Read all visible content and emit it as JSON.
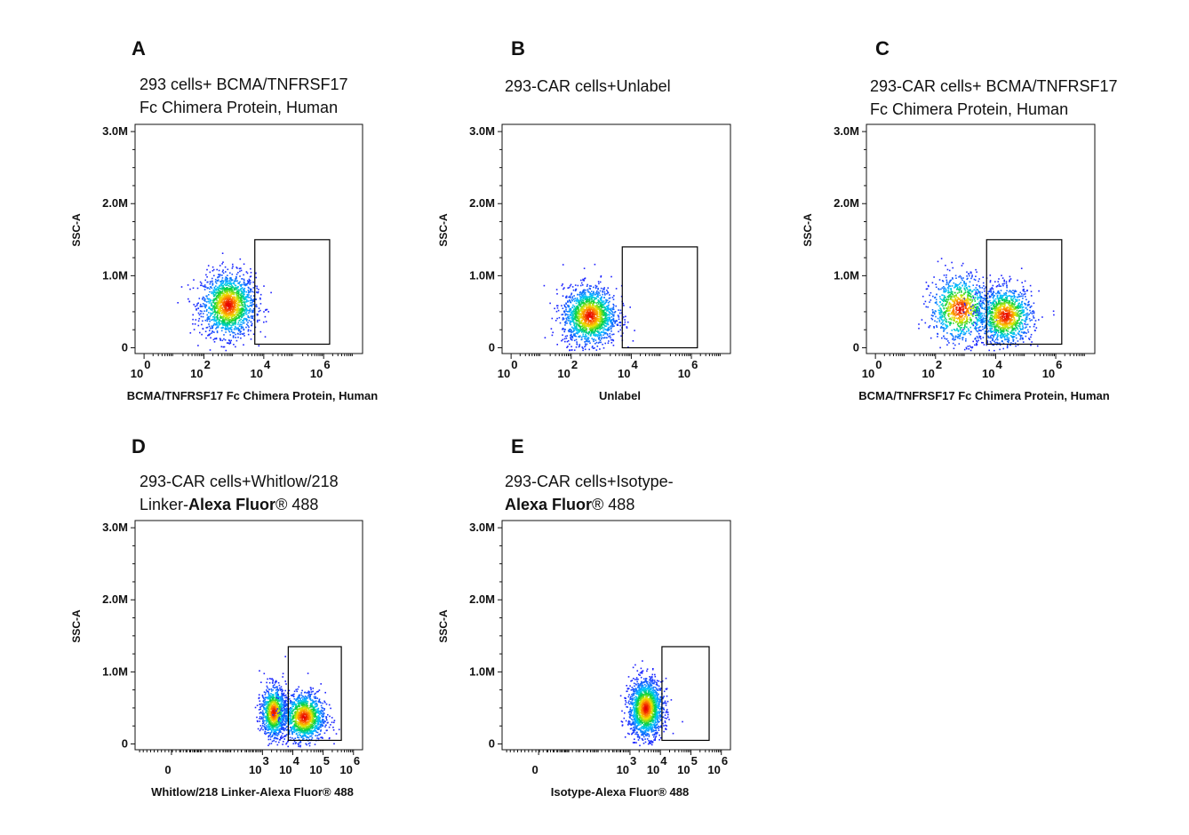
{
  "chart_data": [
    {
      "type": "scatter",
      "panel": "A",
      "title_lines": [
        [
          {
            "text": "293 cells+ BCMA/TNFRSF17",
            "bold": false
          }
        ],
        [
          {
            "text": "Fc Chimera Protein, Human",
            "bold": false
          }
        ]
      ],
      "xlabel": "BCMA/TNFRSF17 Fc Chimera Protein, Human",
      "ylabel": "SSC-A",
      "y_ticks": [
        {
          "v": 0,
          "label": "0"
        },
        {
          "v": 1000000,
          "label": "1.0M"
        },
        {
          "v": 2000000,
          "label": "2.0M"
        },
        {
          "v": 3000000,
          "label": "3.0M"
        }
      ],
      "x_ticks": [
        {
          "v": 0,
          "base": "10",
          "exp": "0"
        },
        {
          "v": 2,
          "base": "10",
          "exp": "2"
        },
        {
          "v": 4,
          "base": "10",
          "exp": "4"
        },
        {
          "v": 6,
          "base": "10",
          "exp": "6"
        }
      ],
      "xlim": [
        -0.3,
        7.3
      ],
      "ylim": [
        -80000,
        3100000
      ],
      "gate": {
        "x": [
          3.7,
          6.2
        ],
        "y": [
          50000,
          1500000
        ]
      },
      "populations": [
        {
          "cx": 2.8,
          "cy": 600000,
          "sx": 0.45,
          "sy": 220000,
          "n": 1600
        }
      ]
    },
    {
      "type": "scatter",
      "panel": "B",
      "title_lines": [
        [
          {
            "text": "293-CAR cells+Unlabel",
            "bold": false
          }
        ]
      ],
      "xlabel": "Unlabel",
      "ylabel": "SSC-A",
      "y_ticks": [
        {
          "v": 0,
          "label": "0"
        },
        {
          "v": 1000000,
          "label": "1.0M"
        },
        {
          "v": 2000000,
          "label": "2.0M"
        },
        {
          "v": 3000000,
          "label": "3.0M"
        }
      ],
      "x_ticks": [
        {
          "v": 0,
          "base": "10",
          "exp": "0"
        },
        {
          "v": 2,
          "base": "10",
          "exp": "2"
        },
        {
          "v": 4,
          "base": "10",
          "exp": "4"
        },
        {
          "v": 6,
          "base": "10",
          "exp": "6"
        }
      ],
      "xlim": [
        -0.3,
        7.3
      ],
      "ylim": [
        -80000,
        3100000
      ],
      "gate": {
        "x": [
          3.7,
          6.2
        ],
        "y": [
          0,
          1400000
        ]
      },
      "populations": [
        {
          "cx": 2.6,
          "cy": 450000,
          "sx": 0.45,
          "sy": 200000,
          "n": 1600
        }
      ]
    },
    {
      "type": "scatter",
      "panel": "C",
      "title_lines": [
        [
          {
            "text": "293-CAR cells+ BCMA/TNFRSF17",
            "bold": false
          }
        ],
        [
          {
            "text": "Fc Chimera Protein, Human",
            "bold": false
          }
        ]
      ],
      "xlabel": "BCMA/TNFRSF17 Fc Chimera Protein, Human",
      "ylabel": "SSC-A",
      "y_ticks": [
        {
          "v": 0,
          "label": "0"
        },
        {
          "v": 1000000,
          "label": "1.0M"
        },
        {
          "v": 2000000,
          "label": "2.0M"
        },
        {
          "v": 3000000,
          "label": "3.0M"
        }
      ],
      "x_ticks": [
        {
          "v": 0,
          "base": "10",
          "exp": "0"
        },
        {
          "v": 2,
          "base": "10",
          "exp": "2"
        },
        {
          "v": 4,
          "base": "10",
          "exp": "4"
        },
        {
          "v": 6,
          "base": "10",
          "exp": "6"
        }
      ],
      "xlim": [
        -0.3,
        7.3
      ],
      "ylim": [
        -80000,
        3100000
      ],
      "gate": {
        "x": [
          3.7,
          6.2
        ],
        "y": [
          50000,
          1500000
        ]
      },
      "populations": [
        {
          "cx": 2.8,
          "cy": 550000,
          "sx": 0.5,
          "sy": 230000,
          "n": 1000
        },
        {
          "cx": 4.3,
          "cy": 450000,
          "sx": 0.45,
          "sy": 200000,
          "n": 1200
        }
      ]
    },
    {
      "type": "scatter",
      "panel": "D",
      "title_lines": [
        [
          {
            "text": "293-CAR  cells+Whitlow/218",
            "bold": false
          }
        ],
        [
          {
            "text": "Linker-",
            "bold": false
          },
          {
            "text": "Alexa Fluor",
            "bold": true
          },
          {
            "text": "® 488",
            "bold": false
          }
        ]
      ],
      "xlabel": "Whitlow/218 Linker-Alexa Fluor® 488",
      "ylabel": "SSC-A",
      "y_ticks": [
        {
          "v": 0,
          "label": "0"
        },
        {
          "v": 1000000,
          "label": "1.0M"
        },
        {
          "v": 2000000,
          "label": "2.0M"
        },
        {
          "v": 3000000,
          "label": "3.0M"
        }
      ],
      "x_ticks": [
        {
          "v": 0,
          "base": "0",
          "exp": ""
        },
        {
          "v": 3,
          "base": "10",
          "exp": "3"
        },
        {
          "v": 4,
          "base": "10",
          "exp": "4"
        },
        {
          "v": 5,
          "base": "10",
          "exp": "5"
        },
        {
          "v": 6,
          "base": "10",
          "exp": "6"
        }
      ],
      "xlim": [
        -1.2,
        6.3
      ],
      "ylim": [
        -80000,
        3100000
      ],
      "gate": {
        "x": [
          3.85,
          5.6
        ],
        "y": [
          50000,
          1350000
        ]
      },
      "populations": [
        {
          "cx": 3.35,
          "cy": 450000,
          "sx": 0.2,
          "sy": 180000,
          "n": 1000
        },
        {
          "cx": 4.35,
          "cy": 380000,
          "sx": 0.35,
          "sy": 170000,
          "n": 1300
        }
      ]
    },
    {
      "type": "scatter",
      "panel": "E",
      "title_lines": [
        [
          {
            "text": "293-CAR   cells+Isotype-",
            "bold": false
          }
        ],
        [
          {
            "text": "Alexa Fluor",
            "bold": true
          },
          {
            "text": "® 488",
            "bold": false
          }
        ]
      ],
      "xlabel": "Isotype-Alexa Fluor® 488",
      "ylabel": "SSC-A",
      "y_ticks": [
        {
          "v": 0,
          "label": "0"
        },
        {
          "v": 1000000,
          "label": "1.0M"
        },
        {
          "v": 2000000,
          "label": "2.0M"
        },
        {
          "v": 3000000,
          "label": "3.0M"
        }
      ],
      "x_ticks": [
        {
          "v": 0,
          "base": "0",
          "exp": ""
        },
        {
          "v": 3,
          "base": "10",
          "exp": "3"
        },
        {
          "v": 4,
          "base": "10",
          "exp": "4"
        },
        {
          "v": 5,
          "base": "10",
          "exp": "5"
        },
        {
          "v": 6,
          "base": "10",
          "exp": "6"
        }
      ],
      "xlim": [
        -1.2,
        6.3
      ],
      "ylim": [
        -80000,
        3100000
      ],
      "gate": {
        "x": [
          4.05,
          5.6
        ],
        "y": [
          50000,
          1350000
        ]
      },
      "populations": [
        {
          "cx": 3.5,
          "cy": 500000,
          "sx": 0.28,
          "sy": 200000,
          "n": 1700
        }
      ]
    }
  ],
  "colors": {
    "axis": "#111111",
    "gate": "#000000",
    "density_low": "#1a1aff",
    "density_mid": "#00d000",
    "density_high": "#ff2000"
  }
}
